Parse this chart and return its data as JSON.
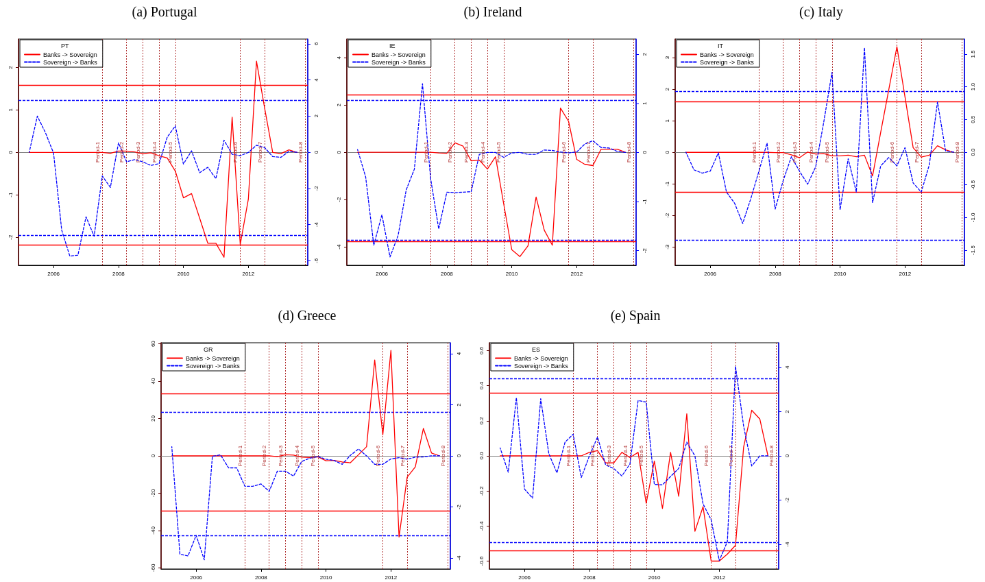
{
  "chart_data": [
    {
      "type": "line",
      "title": "(a) Portugal",
      "legend_title": "PT",
      "legend": "top left",
      "marker": "none",
      "x": [
        2005.25,
        2005.5,
        2005.75,
        2006,
        2006.25,
        2006.5,
        2006.75,
        2007,
        2007.25,
        2007.5,
        2007.75,
        2008,
        2008.25,
        2008.5,
        2008.75,
        2009,
        2009.25,
        2009.5,
        2009.75,
        2010,
        2010.25,
        2010.5,
        2010.75,
        2011,
        2011.25,
        2011.5,
        2011.75,
        2012,
        2012.25,
        2012.5,
        2012.75,
        2013,
        2013.25,
        2013.5
      ],
      "xlim": [
        2004.92,
        2013.83
      ],
      "xticks": [
        2006,
        2008,
        2010,
        2012
      ],
      "ylim": [
        -2.66,
        2.67
      ],
      "yticks": [
        -2,
        -1,
        0,
        1,
        2
      ],
      "y2lim": [
        -6.25,
        6.26
      ],
      "y2ticks": [
        -6,
        -4,
        -2,
        0,
        2,
        4,
        6
      ],
      "series": [
        {
          "name": "Banks -> Sovereign",
          "color": "#ff0000",
          "line_style": "solid",
          "axis": "y",
          "values": [
            0,
            0,
            0,
            0,
            0,
            0,
            0,
            0,
            0,
            0,
            -0.02,
            0.03,
            0.03,
            0.01,
            -0.03,
            -0.01,
            -0.08,
            -0.13,
            -0.44,
            -1.07,
            -0.97,
            -1.55,
            -2.14,
            -2.14,
            -2.47,
            0.83,
            -2.17,
            -1.1,
            2.15,
            1.05,
            0,
            -0.03,
            0.06,
            0
          ]
        },
        {
          "name": "Sovereign -> Banks",
          "color": "#0000ff",
          "line_style": "dashed",
          "axis": "y2",
          "values": [
            0,
            2.0,
            1.08,
            -0.05,
            -4.3,
            -5.74,
            -5.69,
            -3.57,
            -4.64,
            -1.31,
            -1.94,
            0.52,
            -0.53,
            -0.4,
            -0.53,
            -0.73,
            -0.63,
            0.83,
            1.46,
            -0.65,
            0.08,
            -1.13,
            -0.83,
            -1.46,
            0.67,
            -0.11,
            -0.19,
            -0.01,
            0.39,
            0.26,
            -0.24,
            -0.28,
            0.05,
            0
          ]
        }
      ],
      "ref_lines": [
        {
          "axis": "y",
          "value": 0,
          "color": "#808080",
          "line_style": "solid"
        },
        {
          "axis": "y",
          "value": 1.58,
          "color": "#ff0000",
          "line_style": "solid"
        },
        {
          "axis": "y",
          "value": -2.18,
          "color": "#ff0000",
          "line_style": "solid"
        },
        {
          "axis": "y2",
          "value": 2.87,
          "color": "#0000ff",
          "line_style": "dashed"
        },
        {
          "axis": "y2",
          "value": -4.58,
          "color": "#0000ff",
          "line_style": "dashed"
        },
        {
          "axis": "x",
          "value": 2007.5,
          "label": "Period-1",
          "color": "#b03030",
          "line_style": "dotted"
        },
        {
          "axis": "x",
          "value": 2008.25,
          "label": "Period-2",
          "color": "#b03030",
          "line_style": "dotted"
        },
        {
          "axis": "x",
          "value": 2008.75,
          "label": "Period-3",
          "color": "#b03030",
          "line_style": "dotted"
        },
        {
          "axis": "x",
          "value": 2009.25,
          "label": "Period-4",
          "color": "#b03030",
          "line_style": "dotted"
        },
        {
          "axis": "x",
          "value": 2009.75,
          "label": "Period-5",
          "color": "#b03030",
          "line_style": "dotted"
        },
        {
          "axis": "x",
          "value": 2011.75,
          "label": "Period-6",
          "color": "#b03030",
          "line_style": "dotted"
        },
        {
          "axis": "x",
          "value": 2012.5,
          "label": "Period-7",
          "color": "#b03030",
          "line_style": "dotted"
        },
        {
          "axis": "x",
          "value": 2013.75,
          "label": "Period-8",
          "color": "#b03030",
          "line_style": "dotted"
        }
      ]
    },
    {
      "type": "line",
      "title": "(b) Ireland",
      "legend_title": "IE",
      "legend": "top left",
      "marker": "none",
      "x": [
        2005.25,
        2005.5,
        2005.75,
        2006,
        2006.25,
        2006.5,
        2006.75,
        2007,
        2007.25,
        2007.5,
        2007.75,
        2008,
        2008.25,
        2008.5,
        2008.75,
        2009,
        2009.25,
        2009.5,
        2009.75,
        2010,
        2010.25,
        2010.5,
        2010.75,
        2011,
        2011.25,
        2011.5,
        2011.75,
        2012,
        2012.25,
        2012.5,
        2012.75,
        2013,
        2013.25,
        2013.5
      ],
      "xlim": [
        2004.92,
        2013.83
      ],
      "xticks": [
        2006,
        2008,
        2010,
        2012
      ],
      "ylim": [
        -4.78,
        4.79
      ],
      "yticks": [
        -4,
        -2,
        0,
        2,
        4
      ],
      "y2lim": [
        -2.3,
        2.31
      ],
      "y2ticks": [
        -2,
        -1,
        0,
        1,
        2
      ],
      "series": [
        {
          "name": "Banks -> Sovereign",
          "color": "#ff0000",
          "line_style": "solid",
          "axis": "y",
          "values": [
            0,
            0,
            0,
            0,
            0,
            0,
            0,
            0,
            0,
            0,
            -0.03,
            -0.04,
            0.4,
            0.26,
            -0.36,
            -0.33,
            -0.71,
            -0.19,
            -2.17,
            -4.12,
            -4.41,
            -3.96,
            -1.89,
            -3.29,
            -3.93,
            1.87,
            1.31,
            -0.3,
            -0.51,
            -0.56,
            0.13,
            0.13,
            0.13,
            0
          ]
        },
        {
          "name": "Sovereign -> Banks",
          "color": "#0000ff",
          "line_style": "dashed",
          "axis": "y2",
          "values": [
            0.06,
            -0.5,
            -1.89,
            -1.27,
            -2.13,
            -1.69,
            -0.76,
            -0.34,
            1.4,
            -0.53,
            -1.56,
            -0.81,
            -0.82,
            -0.81,
            -0.8,
            -0.04,
            0,
            0,
            -0.1,
            -0.01,
            0,
            -0.04,
            -0.04,
            0.05,
            0.04,
            0.01,
            -0.01,
            0.01,
            0.17,
            0.24,
            0.1,
            0.09,
            0.02,
            0
          ]
        }
      ],
      "ref_lines": [
        {
          "axis": "y",
          "value": 0,
          "color": "#808080",
          "line_style": "solid"
        },
        {
          "axis": "y",
          "value": 2.43,
          "color": "#ff0000",
          "line_style": "solid"
        },
        {
          "axis": "y",
          "value": -3.76,
          "color": "#ff0000",
          "line_style": "solid"
        },
        {
          "axis": "y2",
          "value": 1.06,
          "color": "#0000ff",
          "line_style": "dashed"
        },
        {
          "axis": "y2",
          "value": -1.79,
          "color": "#0000ff",
          "line_style": "dashed"
        },
        {
          "axis": "x",
          "value": 2007.5,
          "label": "Period-1",
          "color": "#b03030",
          "line_style": "dotted"
        },
        {
          "axis": "x",
          "value": 2008.25,
          "label": "Period-2",
          "color": "#b03030",
          "line_style": "dotted"
        },
        {
          "axis": "x",
          "value": 2008.75,
          "label": "Period-3",
          "color": "#b03030",
          "line_style": "dotted"
        },
        {
          "axis": "x",
          "value": 2009.25,
          "label": "Period-4",
          "color": "#b03030",
          "line_style": "dotted"
        },
        {
          "axis": "x",
          "value": 2009.75,
          "label": "Period-5",
          "color": "#b03030",
          "line_style": "dotted"
        },
        {
          "axis": "x",
          "value": 2011.75,
          "label": "Period-6",
          "color": "#b03030",
          "line_style": "dotted"
        },
        {
          "axis": "x",
          "value": 2012.5,
          "label": "Period-7",
          "color": "#b03030",
          "line_style": "dotted"
        },
        {
          "axis": "x",
          "value": 2013.75,
          "label": "Period-8",
          "color": "#b03030",
          "line_style": "dotted"
        }
      ]
    },
    {
      "type": "line",
      "title": "(c) Italy",
      "legend_title": "IT",
      "legend": "top left",
      "marker": "none",
      "x": [
        2005.25,
        2005.5,
        2005.75,
        2006,
        2006.25,
        2006.5,
        2006.75,
        2007,
        2007.25,
        2007.5,
        2007.75,
        2008,
        2008.25,
        2008.5,
        2008.75,
        2009,
        2009.25,
        2009.5,
        2009.75,
        2010,
        2010.25,
        2010.5,
        2010.75,
        2011,
        2011.25,
        2011.5,
        2011.75,
        2012,
        2012.25,
        2012.5,
        2012.75,
        2013,
        2013.25,
        2013.5
      ],
      "xlim": [
        2004.92,
        2013.83
      ],
      "xticks": [
        2006,
        2008,
        2010,
        2012
      ],
      "ylim": [
        -3.58,
        3.59
      ],
      "yticks": [
        -3,
        -2,
        -1,
        0,
        1,
        2,
        3
      ],
      "y2lim": [
        -1.73,
        1.73
      ],
      "y2ticks": [
        -1.5,
        {
          "value": -1,
          "label": "-1.0"
        },
        -0.5,
        {
          "value": 0,
          "label": "0.0"
        },
        0.5,
        {
          "value": 1,
          "label": "1.0"
        },
        1.5
      ],
      "series": [
        {
          "name": "Banks -> Sovereign",
          "color": "#ff0000",
          "line_style": "solid",
          "axis": "y",
          "values": [
            0,
            0,
            0,
            0,
            0,
            0,
            0,
            0,
            0,
            0,
            0,
            -0.01,
            -0.01,
            -0.08,
            -0.17,
            0.01,
            -0.05,
            -0.04,
            -0.11,
            -0.11,
            -0.09,
            -0.14,
            -0.09,
            -0.75,
            0.63,
            1.99,
            3.35,
            1.75,
            0.15,
            -0.15,
            -0.09,
            0.21,
            0.08,
            0
          ]
        },
        {
          "name": "Sovereign -> Banks",
          "color": "#0000ff",
          "line_style": "dashed",
          "axis": "y2",
          "values": [
            0,
            -0.27,
            -0.32,
            -0.29,
            -0.01,
            -0.61,
            -0.78,
            -1.09,
            -0.71,
            -0.29,
            0.14,
            -0.87,
            -0.43,
            -0.07,
            -0.29,
            -0.49,
            -0.22,
            0.47,
            1.22,
            -0.88,
            -0.1,
            -0.61,
            1.6,
            -0.77,
            -0.21,
            -0.08,
            -0.21,
            0.07,
            -0.47,
            -0.61,
            -0.19,
            0.77,
            0.02,
            0
          ]
        }
      ],
      "ref_lines": [
        {
          "axis": "y",
          "value": 0,
          "color": "#808080",
          "line_style": "solid"
        },
        {
          "axis": "y",
          "value": 1.61,
          "color": "#ff0000",
          "line_style": "solid"
        },
        {
          "axis": "y",
          "value": -1.27,
          "color": "#ff0000",
          "line_style": "solid"
        },
        {
          "axis": "y2",
          "value": 0.93,
          "color": "#0000ff",
          "line_style": "dashed"
        },
        {
          "axis": "y2",
          "value": -1.34,
          "color": "#0000ff",
          "line_style": "dashed"
        },
        {
          "axis": "x",
          "value": 2007.5,
          "label": "Period-1",
          "color": "#b03030",
          "line_style": "dotted"
        },
        {
          "axis": "x",
          "value": 2008.25,
          "label": "Period-2",
          "color": "#b03030",
          "line_style": "dotted"
        },
        {
          "axis": "x",
          "value": 2008.75,
          "label": "Period-3",
          "color": "#b03030",
          "line_style": "dotted"
        },
        {
          "axis": "x",
          "value": 2009.25,
          "label": "Period-4",
          "color": "#b03030",
          "line_style": "dotted"
        },
        {
          "axis": "x",
          "value": 2009.75,
          "label": "Period-5",
          "color": "#b03030",
          "line_style": "dotted"
        },
        {
          "axis": "x",
          "value": 2011.75,
          "label": "Period-6",
          "color": "#b03030",
          "line_style": "dotted"
        },
        {
          "axis": "x",
          "value": 2012.5,
          "label": "Period-7",
          "color": "#b03030",
          "line_style": "dotted"
        },
        {
          "axis": "x",
          "value": 2013.75,
          "label": "Period-8",
          "color": "#b03030",
          "line_style": "dotted"
        }
      ]
    },
    {
      "type": "line",
      "title": "(d) Greece",
      "legend_title": "GR",
      "legend": "top left",
      "marker": "none",
      "x": [
        2005.25,
        2005.5,
        2005.75,
        2006,
        2006.25,
        2006.5,
        2006.75,
        2007,
        2007.25,
        2007.5,
        2007.75,
        2008,
        2008.25,
        2008.5,
        2008.75,
        2009,
        2009.25,
        2009.5,
        2009.75,
        2010,
        2010.25,
        2010.5,
        2010.75,
        2011,
        2011.25,
        2011.5,
        2011.75,
        2012,
        2012.25,
        2012.5,
        2012.75,
        2013,
        2013.25,
        2013.5
      ],
      "xlim": [
        2004.92,
        2013.83
      ],
      "xticks": [
        2006,
        2008,
        2010,
        2012
      ],
      "ylim": [
        -60.6,
        60.6
      ],
      "yticks": [
        -60,
        -40,
        -20,
        0,
        20,
        40,
        60
      ],
      "y2lim": [
        -4.43,
        4.43
      ],
      "y2ticks": [
        -4,
        -2,
        0,
        2,
        4
      ],
      "series": [
        {
          "name": "Banks -> Sovereign",
          "color": "#ff0000",
          "line_style": "solid",
          "axis": "y",
          "values": [
            0,
            0,
            0,
            0,
            0,
            0,
            0,
            0,
            0,
            0,
            0,
            0,
            0,
            -0.4,
            0.6,
            0.4,
            -0.7,
            -0.9,
            -0.5,
            -2.6,
            -2.4,
            -3.3,
            -3.7,
            0.6,
            4.9,
            51.4,
            11.3,
            56.5,
            -43.5,
            -11.4,
            -5.9,
            14.7,
            1.5,
            0
          ]
        },
        {
          "name": "Sovereign -> Banks",
          "color": "#0000ff",
          "line_style": "dashed",
          "axis": "y2",
          "values": [
            0.36,
            -3.85,
            -3.92,
            -3.11,
            -4.07,
            -0.02,
            0.04,
            -0.47,
            -0.47,
            -1.19,
            -1.19,
            -1.1,
            -1.39,
            -0.6,
            -0.6,
            -0.79,
            -0.22,
            -0.09,
            -0.03,
            -0.13,
            -0.18,
            -0.33,
            0.02,
            0.27,
            0,
            -0.33,
            -0.33,
            -0.12,
            -0.07,
            -0.13,
            -0.05,
            -0.04,
            0,
            0
          ]
        }
      ],
      "ref_lines": [
        {
          "axis": "y",
          "value": 0,
          "color": "#808080",
          "line_style": "solid"
        },
        {
          "axis": "y",
          "value": 33.4,
          "color": "#ff0000",
          "line_style": "solid"
        },
        {
          "axis": "y",
          "value": -29.4,
          "color": "#ff0000",
          "line_style": "solid"
        },
        {
          "axis": "y2",
          "value": 1.7,
          "color": "#0000ff",
          "line_style": "dashed"
        },
        {
          "axis": "y2",
          "value": -3.11,
          "color": "#0000ff",
          "line_style": "dashed"
        },
        {
          "axis": "x",
          "value": 2007.5,
          "label": "Period-1",
          "color": "#b03030",
          "line_style": "dotted"
        },
        {
          "axis": "x",
          "value": 2008.25,
          "label": "Period-2",
          "color": "#b03030",
          "line_style": "dotted"
        },
        {
          "axis": "x",
          "value": 2008.75,
          "label": "Period-3",
          "color": "#b03030",
          "line_style": "dotted"
        },
        {
          "axis": "x",
          "value": 2009.25,
          "label": "Period-4",
          "color": "#b03030",
          "line_style": "dotted"
        },
        {
          "axis": "x",
          "value": 2009.75,
          "label": "Period-5",
          "color": "#b03030",
          "line_style": "dotted"
        },
        {
          "axis": "x",
          "value": 2011.75,
          "label": "Period-6",
          "color": "#b03030",
          "line_style": "dotted"
        },
        {
          "axis": "x",
          "value": 2012.5,
          "label": "Period-7",
          "color": "#b03030",
          "line_style": "dotted"
        },
        {
          "axis": "x",
          "value": 2013.75,
          "label": "Period-8",
          "color": "#b03030",
          "line_style": "dotted"
        }
      ]
    },
    {
      "type": "line",
      "title": "(e) Spain",
      "legend_title": "ES",
      "legend": "top left",
      "marker": "none",
      "x": [
        2005.25,
        2005.5,
        2005.75,
        2006,
        2006.25,
        2006.5,
        2006.75,
        2007,
        2007.25,
        2007.5,
        2007.75,
        2008,
        2008.25,
        2008.5,
        2008.75,
        2009,
        2009.25,
        2009.5,
        2009.75,
        2010,
        2010.25,
        2010.5,
        2010.75,
        2011,
        2011.25,
        2011.5,
        2011.75,
        2012,
        2012.25,
        2012.5,
        2012.75,
        2013,
        2013.25,
        2013.5
      ],
      "xlim": [
        2004.92,
        2013.83
      ],
      "xticks": [
        2006,
        2008,
        2010,
        2012
      ],
      "ylim": [
        -0.645,
        0.645
      ],
      "yticks": [
        -0.6,
        -0.4,
        -0.2,
        {
          "value": 0,
          "label": "0.0"
        },
        0.2,
        0.4,
        0.6
      ],
      "y2lim": [
        -5.11,
        5.11
      ],
      "y2ticks": [
        -4,
        -2,
        0,
        2,
        4
      ],
      "series": [
        {
          "name": "Banks -> Sovereign",
          "color": "#ff0000",
          "line_style": "solid",
          "axis": "y",
          "values": [
            0,
            0,
            0,
            0,
            0,
            0,
            0,
            0,
            0,
            0,
            0,
            0.02,
            0.03,
            -0.04,
            -0.04,
            0.02,
            -0.01,
            0.02,
            -0.27,
            -0.03,
            -0.3,
            0.02,
            -0.23,
            0.24,
            -0.43,
            -0.29,
            -0.6,
            -0.6,
            -0.56,
            -0.51,
            0.05,
            0.26,
            0.21,
            0
          ]
        },
        {
          "name": "Sovereign -> Banks",
          "color": "#0000ff",
          "line_style": "dashed",
          "axis": "y2",
          "values": [
            0.36,
            -0.74,
            2.63,
            -1.5,
            -1.91,
            2.58,
            0.1,
            -0.77,
            0.62,
            0.98,
            -0.98,
            0,
            0.85,
            -0.41,
            -0.57,
            -0.91,
            -0.36,
            2.5,
            2.43,
            -1.29,
            -1.31,
            -0.93,
            -0.57,
            0.62,
            0,
            -2.17,
            -2.89,
            -4.73,
            -3.87,
            4.05,
            1.34,
            -0.46,
            0,
            0
          ]
        }
      ],
      "ref_lines": [
        {
          "axis": "y",
          "value": 0,
          "color": "#808080",
          "line_style": "solid"
        },
        {
          "axis": "y",
          "value": 0.36,
          "color": "#ff0000",
          "line_style": "solid"
        },
        {
          "axis": "y",
          "value": -0.54,
          "color": "#ff0000",
          "line_style": "solid"
        },
        {
          "axis": "y2",
          "value": 3.49,
          "color": "#0000ff",
          "line_style": "dashed"
        },
        {
          "axis": "y2",
          "value": -3.92,
          "color": "#0000ff",
          "line_style": "dashed"
        },
        {
          "axis": "x",
          "value": 2007.5,
          "label": "Period-1",
          "color": "#b03030",
          "line_style": "dotted"
        },
        {
          "axis": "x",
          "value": 2008.25,
          "label": "Period-2",
          "color": "#b03030",
          "line_style": "dotted"
        },
        {
          "axis": "x",
          "value": 2008.75,
          "label": "Period-3",
          "color": "#b03030",
          "line_style": "dotted"
        },
        {
          "axis": "x",
          "value": 2009.25,
          "label": "Period-4",
          "color": "#b03030",
          "line_style": "dotted"
        },
        {
          "axis": "x",
          "value": 2009.75,
          "label": "Period-5",
          "color": "#b03030",
          "line_style": "dotted"
        },
        {
          "axis": "x",
          "value": 2011.75,
          "label": "Period-6",
          "color": "#b03030",
          "line_style": "dotted"
        },
        {
          "axis": "x",
          "value": 2012.5,
          "label": "Period-7",
          "color": "#b03030",
          "line_style": "dotted"
        },
        {
          "axis": "x",
          "value": 2013.75,
          "label": "Period-8",
          "color": "#b03030",
          "line_style": "dotted"
        }
      ]
    }
  ]
}
